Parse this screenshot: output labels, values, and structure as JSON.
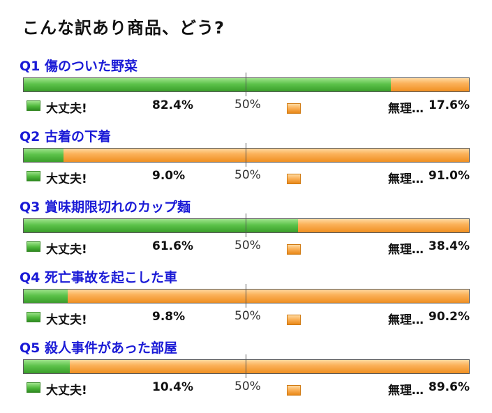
{
  "title": "こんな訳あり商品、どう?",
  "legend": {
    "yes": "大丈夫!",
    "no": "無理…",
    "midpoint": "50%"
  },
  "colors": {
    "yes": "#4fb83c",
    "no": "#f7a13a",
    "question": "#1a1ad6"
  },
  "chart_data": {
    "type": "bar",
    "stacked": true,
    "orientation": "horizontal",
    "xlim": [
      0,
      100
    ],
    "categories": [
      "Q1 傷のついた野菜",
      "Q2 古着の下着",
      "Q3 賞味期限切れのカップ麺",
      "Q4 死亡事故を起こした車",
      "Q5 殺人事件があった部屋"
    ],
    "series": [
      {
        "name": "大丈夫!",
        "values": [
          82.4,
          9.0,
          61.6,
          9.8,
          10.4
        ]
      },
      {
        "name": "無理…",
        "values": [
          17.6,
          91.0,
          38.4,
          90.2,
          89.6
        ]
      }
    ],
    "value_labels": {
      "yes": [
        "82.4%",
        "9.0%",
        "61.6%",
        "9.8%",
        "10.4%"
      ],
      "no": [
        "17.6%",
        "91.0%",
        "38.4%",
        "90.2%",
        "89.6%"
      ]
    }
  }
}
